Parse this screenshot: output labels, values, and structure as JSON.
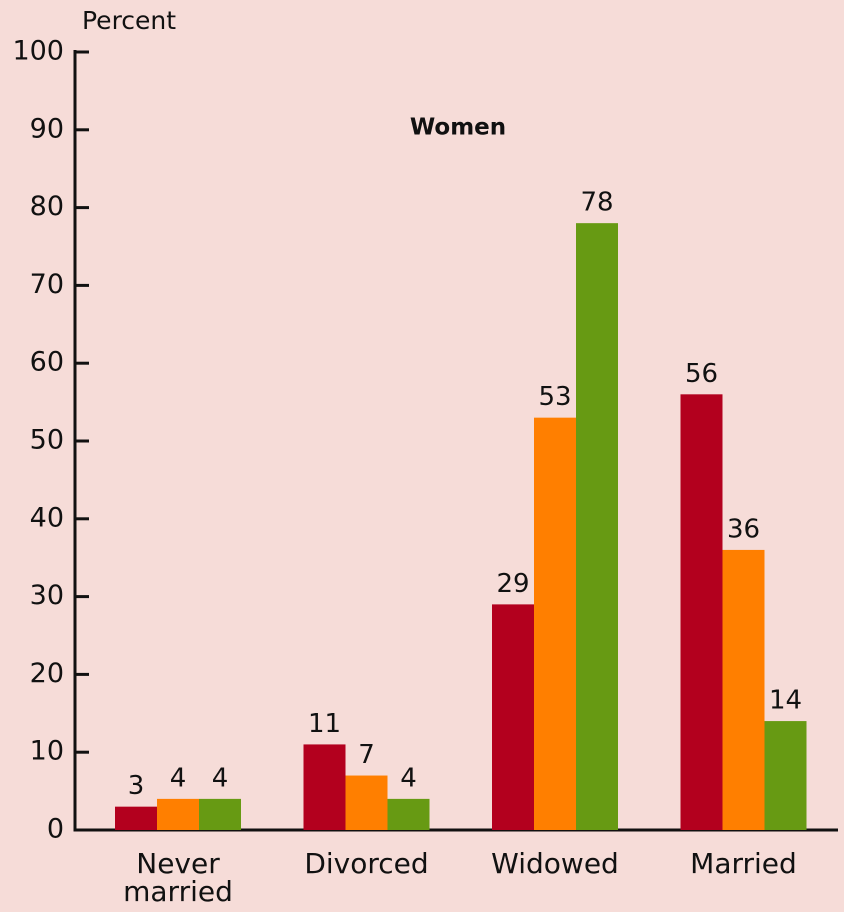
{
  "chart_data": {
    "type": "bar",
    "title": "Women",
    "y_label": "Percent",
    "categories": [
      "Never married",
      "Divorced",
      "Widowed",
      "Married"
    ],
    "series": [
      {
        "color": "#b3001e",
        "values": [
          3,
          11,
          29,
          56
        ]
      },
      {
        "color": "#ff7f00",
        "values": [
          4,
          7,
          53,
          36
        ]
      },
      {
        "color": "#679a13",
        "values": [
          4,
          4,
          78,
          14
        ]
      }
    ],
    "ylim": [
      0,
      100
    ],
    "yticks": [
      0,
      10,
      20,
      30,
      40,
      50,
      60,
      70,
      80,
      90,
      100
    ]
  }
}
